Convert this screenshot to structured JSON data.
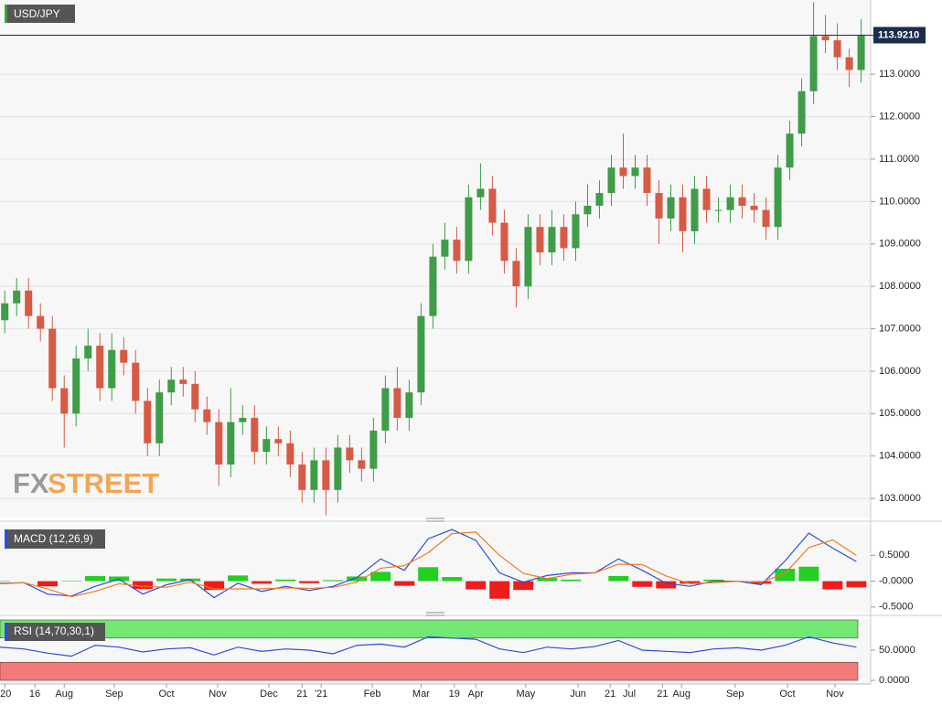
{
  "chart_data": [
    {
      "type": "candlestick",
      "title": "USD/JPY",
      "x": [
        2,
        7,
        12,
        17,
        22,
        27,
        32,
        37,
        42,
        47,
        52,
        57,
        62,
        67,
        72,
        77,
        82,
        87,
        92,
        97,
        102,
        107,
        112,
        117,
        122,
        127,
        132,
        137,
        142,
        147,
        152,
        157,
        162,
        167,
        172,
        177,
        182,
        187,
        192,
        197,
        202,
        207,
        212,
        217,
        222,
        227,
        232,
        237,
        242,
        247,
        252,
        257,
        262,
        267,
        272,
        277,
        282,
        287,
        292,
        297,
        302,
        307,
        312,
        317,
        322,
        327,
        332,
        337,
        342,
        347,
        352,
        357,
        362
      ],
      "open": [
        107.2,
        107.6,
        107.9,
        107.3,
        107.0,
        105.6,
        105.0,
        106.3,
        106.6,
        105.6,
        106.5,
        106.2,
        105.3,
        104.3,
        105.5,
        105.8,
        105.7,
        105.1,
        104.8,
        103.8,
        104.8,
        104.9,
        104.1,
        104.4,
        104.3,
        103.8,
        103.2,
        103.9,
        103.2,
        104.2,
        103.9,
        103.7,
        104.6,
        105.6,
        104.9,
        105.5,
        107.3,
        108.7,
        109.1,
        108.6,
        110.1,
        110.3,
        109.5,
        108.6,
        108.0,
        109.4,
        108.8,
        109.4,
        108.9,
        109.7,
        109.9,
        110.2,
        110.8,
        110.6,
        110.8,
        110.2,
        109.6,
        110.1,
        109.3,
        110.3,
        109.8,
        109.8,
        110.1,
        109.9,
        109.8,
        109.4,
        110.8,
        111.6,
        112.6,
        113.9,
        113.8,
        113.4,
        113.1
      ],
      "high": [
        107.9,
        108.2,
        108.2,
        107.6,
        107.3,
        105.9,
        106.6,
        107.0,
        106.9,
        106.9,
        106.8,
        106.5,
        105.6,
        105.8,
        106.1,
        106.1,
        106.0,
        105.4,
        105.1,
        105.6,
        105.2,
        105.2,
        104.7,
        104.7,
        104.6,
        104.1,
        104.2,
        104.2,
        104.5,
        104.5,
        104.2,
        104.9,
        105.9,
        106.1,
        105.8,
        107.6,
        109.0,
        109.5,
        109.4,
        110.4,
        110.9,
        110.6,
        109.8,
        108.9,
        109.7,
        109.7,
        109.8,
        109.7,
        110.0,
        110.4,
        110.5,
        111.1,
        111.6,
        111.1,
        111.1,
        110.5,
        110.4,
        110.4,
        110.6,
        110.6,
        110.1,
        110.4,
        110.4,
        110.2,
        110.1,
        111.1,
        111.9,
        112.9,
        114.7,
        114.4,
        114.2,
        113.6,
        114.3
      ],
      "low": [
        106.9,
        107.3,
        107.0,
        106.7,
        105.3,
        104.2,
        104.7,
        106.0,
        105.3,
        105.3,
        105.9,
        105.0,
        104.0,
        104.0,
        105.2,
        105.4,
        104.8,
        104.5,
        103.3,
        103.5,
        104.5,
        103.8,
        103.8,
        104.0,
        103.5,
        102.9,
        102.9,
        102.6,
        102.9,
        103.6,
        103.4,
        103.4,
        104.3,
        104.6,
        104.6,
        105.2,
        107.0,
        108.4,
        108.3,
        108.3,
        109.8,
        109.2,
        108.3,
        107.5,
        107.7,
        108.5,
        108.5,
        108.6,
        108.6,
        109.4,
        109.6,
        109.9,
        110.3,
        110.3,
        109.9,
        109.0,
        109.3,
        108.8,
        109.0,
        109.5,
        109.5,
        109.5,
        109.6,
        109.5,
        109.1,
        109.1,
        110.5,
        111.3,
        112.3,
        113.5,
        113.1,
        112.7,
        112.8
      ],
      "close": [
        107.6,
        107.9,
        107.3,
        107.0,
        105.6,
        105.0,
        106.3,
        106.6,
        105.6,
        106.5,
        106.2,
        105.3,
        104.3,
        105.5,
        105.8,
        105.7,
        105.1,
        104.8,
        103.8,
        104.8,
        104.9,
        104.1,
        104.4,
        104.3,
        103.8,
        103.2,
        103.9,
        103.2,
        104.2,
        103.9,
        103.7,
        104.6,
        105.6,
        104.9,
        105.5,
        107.3,
        108.7,
        109.1,
        108.6,
        110.1,
        110.3,
        109.5,
        108.6,
        108.0,
        109.4,
        108.8,
        109.4,
        108.9,
        109.7,
        109.9,
        110.2,
        110.8,
        110.6,
        110.8,
        110.2,
        109.6,
        110.1,
        109.3,
        110.3,
        109.8,
        109.8,
        110.1,
        109.9,
        109.8,
        109.4,
        110.8,
        111.6,
        112.6,
        113.9,
        113.8,
        113.4,
        113.1,
        113.92
      ],
      "up_color": "#3f9c48",
      "down_color": "#d65a45",
      "xlim": [
        0,
        366
      ],
      "ylim": [
        102.55,
        114.75
      ],
      "yticks": [
        {
          "value": 103,
          "label": "103.0000"
        },
        {
          "value": 104,
          "label": "104.0000"
        },
        {
          "value": 105,
          "label": "105.0000"
        },
        {
          "value": 106,
          "label": "106.0000"
        },
        {
          "value": 107,
          "label": "107.0000"
        },
        {
          "value": 108,
          "label": "108.0000"
        },
        {
          "value": 109,
          "label": "109.0000"
        },
        {
          "value": 110,
          "label": "110.0000"
        },
        {
          "value": 111,
          "label": "111.0000"
        },
        {
          "value": 112,
          "label": "112.0000"
        },
        {
          "value": 113,
          "label": "113.0000"
        }
      ],
      "grid": true,
      "last_price": {
        "value": 113.921,
        "label": "113.9210"
      },
      "watermark": [
        "FX",
        "STREET"
      ]
    },
    {
      "type": "macd",
      "title": "MACD (12,26,9)",
      "x": [
        0,
        10,
        20,
        30,
        40,
        50,
        60,
        70,
        80,
        90,
        100,
        110,
        120,
        130,
        140,
        150,
        160,
        170,
        180,
        190,
        200,
        210,
        220,
        230,
        240,
        250,
        260,
        270,
        280,
        290,
        300,
        310,
        320,
        330,
        340,
        350,
        360
      ],
      "series": [
        {
          "color": "#2a4fd6",
          "values": [
            -0.04,
            -0.03,
            -0.25,
            -0.29,
            -0.1,
            0.04,
            -0.25,
            -0.07,
            0.03,
            -0.32,
            -0.04,
            -0.2,
            -0.1,
            -0.18,
            -0.1,
            0.07,
            0.43,
            0.21,
            0.82,
            1.0,
            0.79,
            0.16,
            -0.02,
            0.11,
            0.16,
            0.16,
            0.43,
            0.21,
            -0.04,
            -0.1,
            0,
            0,
            -0.07,
            0.39,
            0.93,
            0.64,
            0.38
          ]
        },
        {
          "color": "#f07a22",
          "values": [
            -0.05,
            -0.03,
            -0.15,
            -0.3,
            -0.2,
            -0.05,
            -0.1,
            -0.12,
            -0.02,
            -0.15,
            -0.15,
            -0.15,
            -0.13,
            -0.14,
            -0.12,
            -0.02,
            0.25,
            0.3,
            0.55,
            0.92,
            0.95,
            0.5,
            0.15,
            0.05,
            0.13,
            0.16,
            0.33,
            0.32,
            0.1,
            -0.05,
            -0.03,
            0,
            -0.02,
            0.15,
            0.65,
            0.8,
            0.5
          ]
        }
      ],
      "histogram": {
        "values": [
          0.01,
          0,
          -0.1,
          0.01,
          0.1,
          0.09,
          -0.15,
          0.05,
          0.05,
          -0.17,
          0.11,
          -0.05,
          0.03,
          -0.04,
          0.02,
          0.09,
          0.18,
          -0.09,
          0.27,
          0.08,
          -0.16,
          -0.34,
          -0.17,
          0.06,
          0.03,
          0,
          0.1,
          -0.11,
          -0.14,
          -0.05,
          0.03,
          0,
          -0.05,
          0.24,
          0.28,
          -0.16,
          -0.12
        ],
        "up_color": "#22d022",
        "down_color": "#ee1c1c"
      },
      "xlim": [
        0,
        366
      ],
      "ylim": [
        -0.61,
        1.09
      ],
      "yticks": [
        {
          "value": -0.5,
          "label": "-0.5000"
        },
        {
          "value": 0,
          "label": "-0.0000"
        },
        {
          "value": 0.5,
          "label": "0.5000"
        }
      ]
    },
    {
      "type": "rsi",
      "title": "RSI (14,70,30,1)",
      "x": [
        0,
        10,
        20,
        30,
        40,
        50,
        60,
        70,
        80,
        90,
        100,
        110,
        120,
        130,
        140,
        150,
        160,
        170,
        180,
        190,
        200,
        210,
        220,
        230,
        240,
        250,
        260,
        270,
        280,
        290,
        300,
        310,
        320,
        330,
        340,
        350,
        360
      ],
      "series": [
        {
          "color": "#2a4fd6",
          "values": [
            55,
            52,
            45,
            40,
            58,
            55,
            47,
            52,
            54,
            42,
            55,
            48,
            52,
            50,
            44,
            58,
            60,
            55,
            72,
            70,
            68,
            52,
            46,
            55,
            52,
            56,
            66,
            50,
            48,
            46,
            52,
            54,
            50,
            58,
            72,
            62,
            55
          ]
        }
      ],
      "bands": [
        {
          "range": [
            70,
            100
          ],
          "color": "#74e874"
        },
        {
          "range": [
            0,
            30
          ],
          "color": "#f47a7a"
        }
      ],
      "xlim": [
        0,
        366
      ],
      "ylim": [
        -6,
        101.5
      ],
      "yticks": [
        {
          "value": 0,
          "label": "0.0000"
        },
        {
          "value": 50,
          "label": "50.0000"
        }
      ],
      "xticks": [
        {
          "value": 2,
          "label": "'20"
        },
        {
          "value": 14.6,
          "label": "16"
        },
        {
          "value": 27,
          "label": "Aug"
        },
        {
          "value": 48,
          "label": "Sep"
        },
        {
          "value": 70,
          "label": "Oct"
        },
        {
          "value": 91.5,
          "label": "Nov"
        },
        {
          "value": 113,
          "label": "Dec"
        },
        {
          "value": 127,
          "label": "21"
        },
        {
          "value": 135,
          "label": "'21"
        },
        {
          "value": 156.5,
          "label": "Feb"
        },
        {
          "value": 177,
          "label": "Mar"
        },
        {
          "value": 191,
          "label": "19"
        },
        {
          "value": 200,
          "label": "Apr"
        },
        {
          "value": 221,
          "label": "May"
        },
        {
          "value": 243,
          "label": "Jun"
        },
        {
          "value": 256.5,
          "label": "21"
        },
        {
          "value": 264.5,
          "label": "Jul"
        },
        {
          "value": 278.5,
          "label": "21"
        },
        {
          "value": 286.5,
          "label": "Aug"
        },
        {
          "value": 309,
          "label": "Sep"
        },
        {
          "value": 331,
          "label": "Oct"
        },
        {
          "value": 351,
          "label": "Nov"
        }
      ]
    }
  ]
}
